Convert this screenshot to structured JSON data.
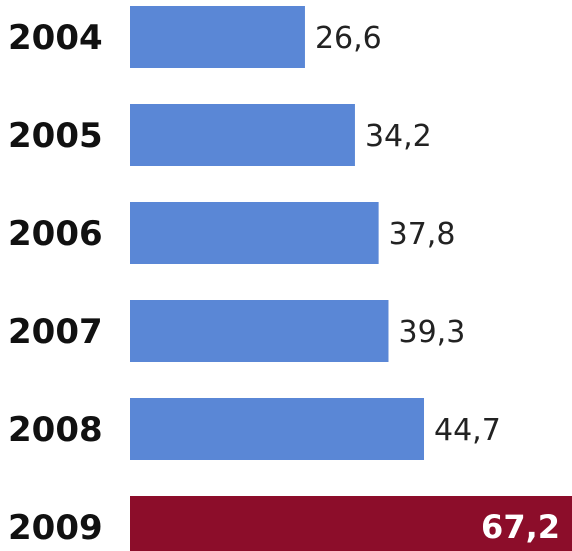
{
  "chart_data": {
    "type": "bar",
    "orientation": "horizontal",
    "title": "",
    "xlabel": "",
    "ylabel": "",
    "categories": [
      "2004",
      "2005",
      "2006",
      "2007",
      "2008",
      "2009"
    ],
    "values": [
      26.6,
      34.2,
      37.8,
      39.3,
      44.7,
      67.2
    ],
    "value_labels": [
      "26,6",
      "34,2",
      "37,8",
      "39,3",
      "44,7",
      "67,2"
    ],
    "xlim": [
      0,
      67.2
    ],
    "grid": false,
    "colors": {
      "default_bar": "#5a87d6",
      "highlight_bar": "#8c0d2a",
      "highlight_category": "2009"
    }
  }
}
